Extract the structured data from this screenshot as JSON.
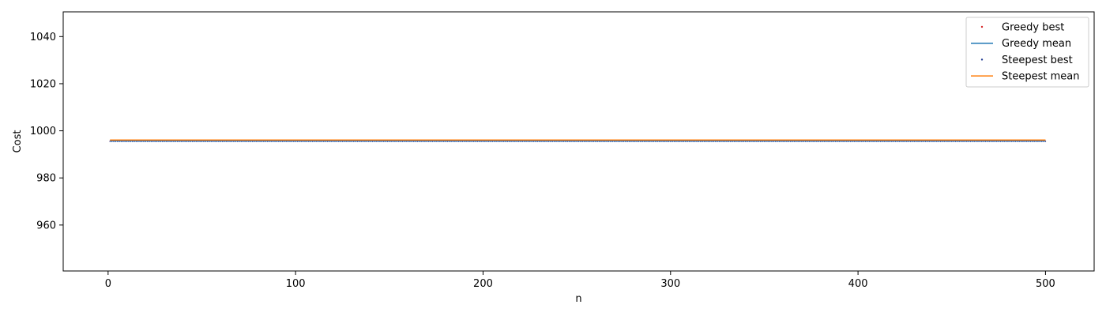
{
  "chart_data": {
    "type": "line",
    "title": "",
    "xlabel": "n",
    "ylabel": "Cost",
    "xlim": [
      -23.95,
      525.95
    ],
    "ylim": [
      940.5,
      1050.5
    ],
    "xticks": [
      0,
      100,
      200,
      300,
      400,
      500
    ],
    "yticks": [
      960,
      980,
      1000,
      1020,
      1040
    ],
    "xtick_labels": [
      "0",
      "100",
      "200",
      "300",
      "400",
      "500"
    ],
    "ytick_labels": [
      "960",
      "980",
      "1000",
      "1020",
      "1040"
    ],
    "grid": false,
    "legend_position": "top-right",
    "x_range": [
      1,
      500
    ],
    "series": [
      {
        "name": "Greedy best",
        "kind": "points",
        "color": "#d62728",
        "value": 995.6
      },
      {
        "name": "Greedy mean",
        "kind": "line",
        "color": "#1f77b4",
        "value": 995.7
      },
      {
        "name": "Steepest best",
        "kind": "points",
        "color": "#1f3a93",
        "value": 995.5
      },
      {
        "name": "Steepest mean",
        "kind": "line",
        "color": "#ff7f0e",
        "value": 996.1
      }
    ]
  }
}
